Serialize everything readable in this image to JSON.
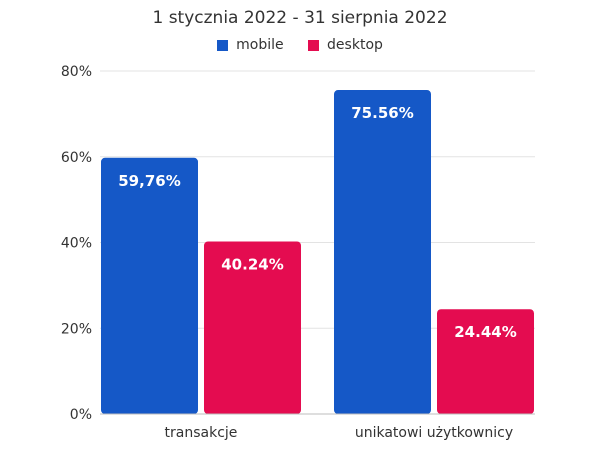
{
  "chart_data": {
    "type": "bar",
    "title": "1 stycznia 2022 - 31 sierpnia 2022",
    "categories": [
      "transakcje",
      "unikatowi użytkownicy"
    ],
    "series": [
      {
        "name": "mobile",
        "color": "#1558c7",
        "values": [
          59.76,
          75.56
        ],
        "labels": [
          "59,76%",
          "75.56%"
        ]
      },
      {
        "name": "desktop",
        "color": "#e40c50",
        "values": [
          40.24,
          24.44
        ],
        "labels": [
          "40.24%",
          "24.44%"
        ]
      }
    ],
    "yticks": [
      "0%",
      "20%",
      "40%",
      "60%",
      "80%"
    ],
    "ylim": [
      0,
      80
    ],
    "grid": true,
    "legend_position": "top-center"
  }
}
